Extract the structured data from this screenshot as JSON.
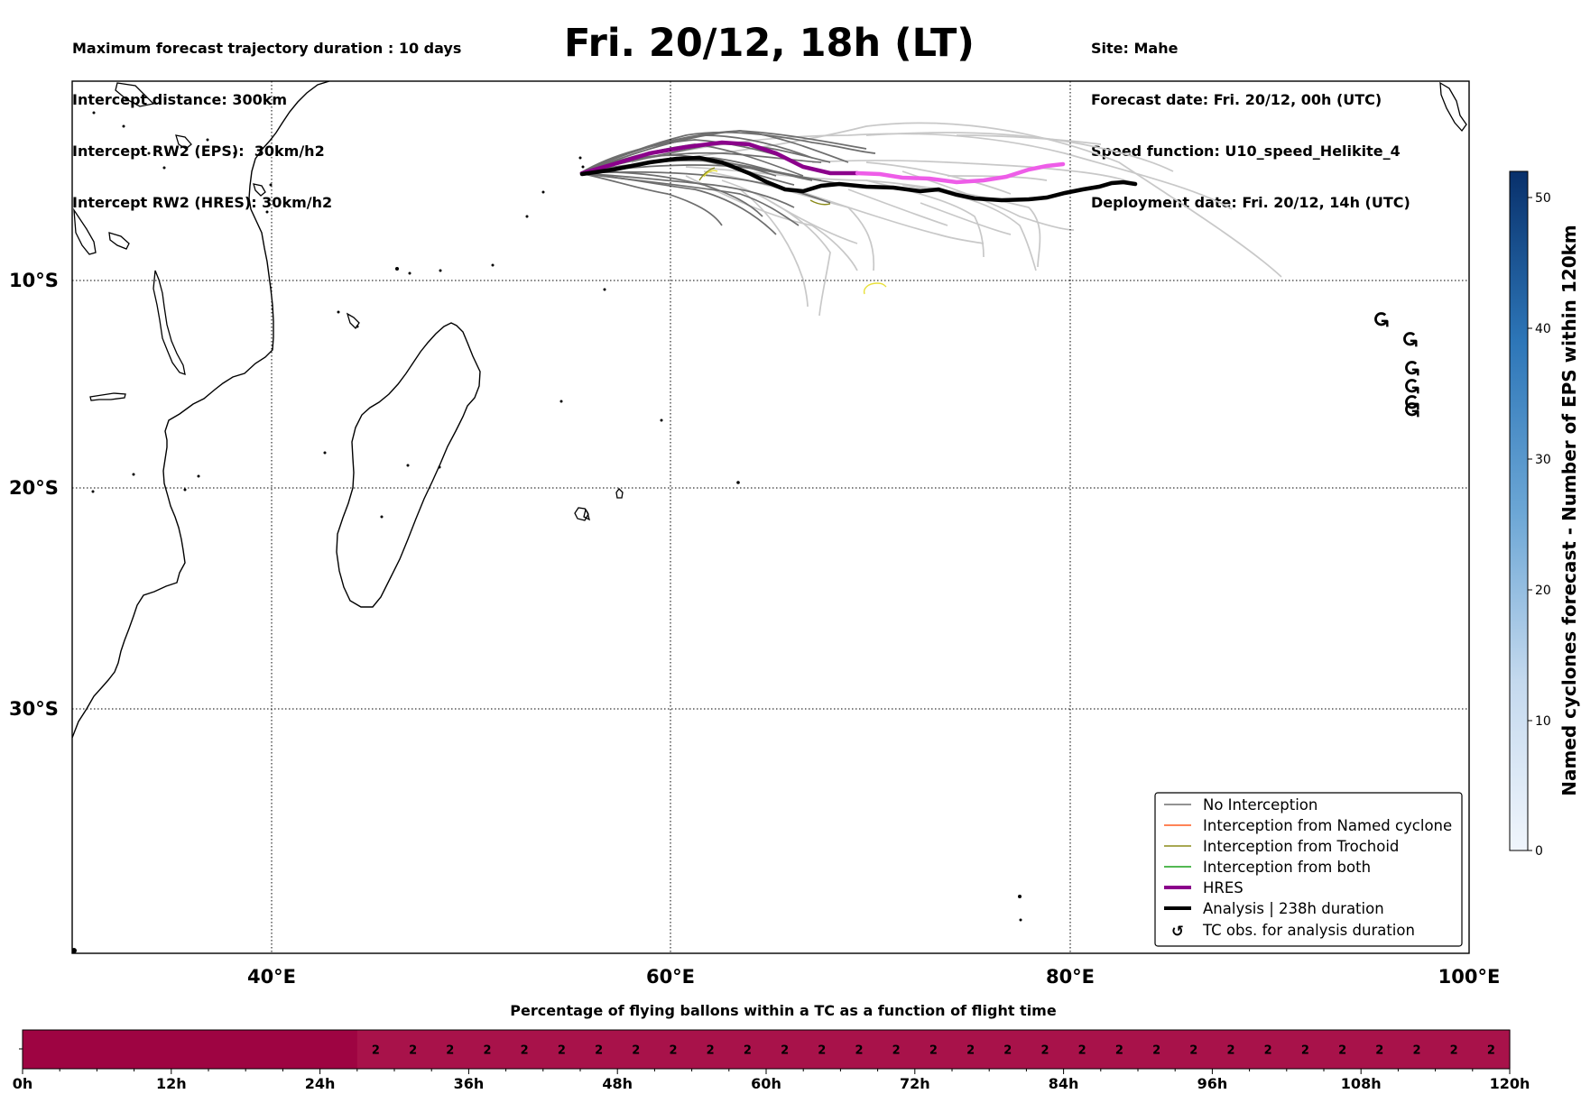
{
  "header": {
    "left_lines": [
      "Maximum forecast trajectory duration : 10 days",
      "Intercept distance: 300km",
      "Intercept RW2 (EPS):  30km/h2",
      "Intercept RW2 (HRES): 30km/h2"
    ],
    "title": "Fri. 20/12, 18h (LT)",
    "right_lines": [
      "Site: Mahe",
      "Forecast date: Fri. 20/12, 00h (UTC)",
      "Speed function: U10_speed_Helikite_4",
      "Deployment date: Fri. 20/12, 14h (UTC)"
    ]
  },
  "map": {
    "lat_labels": [
      "10°S",
      "20°S",
      "30°S"
    ],
    "lon_labels": [
      "40°E",
      "60°E",
      "80°E",
      "100°E"
    ],
    "extent_lon": [
      30,
      100
    ],
    "extent_lat": [
      0,
      -40
    ],
    "gridlines": true,
    "tc_symbol": "↺",
    "colors": {
      "no_interception": "#6e6e6e",
      "late_ensemble": "#c8c8c8",
      "named_cyclone": "#ff5a1e",
      "trochoid": "#8b8b1a",
      "both": "#1aa01a",
      "hres": "#8b008b",
      "hres_late": "#ee5de8",
      "analysis": "#000000",
      "yellow_track": "#e8e03a"
    }
  },
  "legend": {
    "items": [
      {
        "label": "No Interception",
        "color": "#6e6e6e",
        "style": "thin"
      },
      {
        "label": "Interception from Named cyclone",
        "color": "#ff5a1e",
        "style": "thin"
      },
      {
        "label": "Interception from Trochoid",
        "color": "#8b8b1a",
        "style": "thin"
      },
      {
        "label": "Interception from both",
        "color": "#1aa01a",
        "style": "thin"
      },
      {
        "label": "HRES",
        "color": "#8b008b",
        "style": "thick"
      },
      {
        "label": "Analysis | 238h duration",
        "color": "#000000",
        "style": "thick"
      },
      {
        "label": "TC obs. for analysis duration",
        "color": "#000000",
        "style": "symbol",
        "symbol": "↺"
      }
    ]
  },
  "colorbar": {
    "title": "Named cyclones forecast - Number of EPS within 120km",
    "ticks": [
      "0",
      "10",
      "20",
      "30",
      "40",
      "50"
    ],
    "range": [
      0,
      52
    ],
    "color_low": "#eef3fb",
    "color_high": "#08306b"
  },
  "bottom_bar": {
    "title": "Percentage of flying ballons within a TC as a function of flight time",
    "time_ticks": [
      "0h",
      "12h",
      "24h",
      "36h",
      "48h",
      "60h",
      "72h",
      "84h",
      "96h",
      "108h",
      "120h"
    ],
    "cell_value": "2",
    "empty_color": "#9e0442",
    "value_color": "#a8124a"
  },
  "chart_data": {
    "type": "heatmap",
    "title": "Percentage of flying ballons within a TC as a function of flight time",
    "x_unit": "h",
    "x_range": [
      0,
      120
    ],
    "cells_start_h": 0,
    "cell_width_h": 3,
    "values": [
      null,
      null,
      null,
      null,
      null,
      null,
      null,
      null,
      null,
      2,
      2,
      2,
      2,
      2,
      2,
      2,
      2,
      2,
      2,
      2,
      2,
      2,
      2,
      2,
      2,
      2,
      2,
      2,
      2,
      2,
      2,
      2,
      2,
      2,
      2,
      2,
      2,
      2,
      2,
      2
    ]
  }
}
